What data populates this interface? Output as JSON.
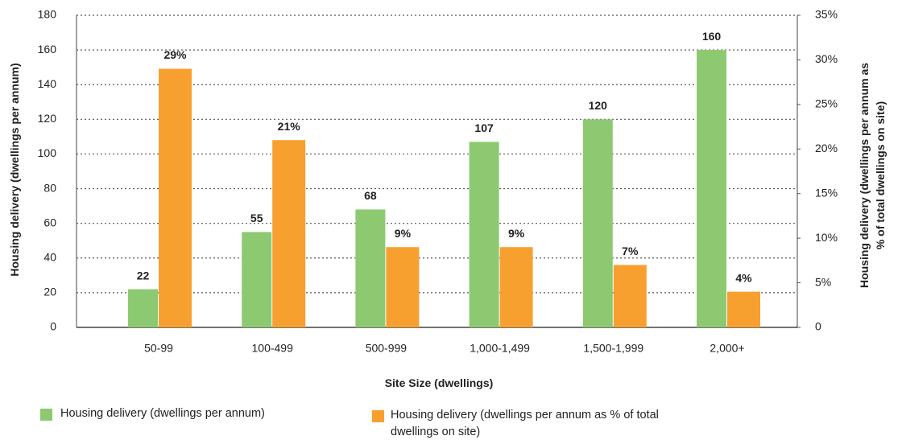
{
  "chart_data": {
    "type": "bar",
    "x_label": "Site Size (dwellings)",
    "y_label": "Housing delivery (dwellings per annum)",
    "y2_label": "Housing delivery (dwellings per annum as % of total dwellings on site)",
    "categories": [
      "50-99",
      "100-499",
      "500-999",
      "1,000-1,499",
      "1,500-1,999",
      "2,000+"
    ],
    "series": [
      {
        "name": "Housing delivery (dwellings per annum)",
        "color": "#8dc971",
        "values": [
          22,
          55,
          68,
          107,
          120,
          160
        ]
      },
      {
        "name": "Housing delivery (dwellings per annum as % of total dwellings on site)",
        "color": "#f7a030",
        "axis": "y2",
        "values": [
          29,
          21,
          9,
          9,
          7,
          4
        ],
        "value_labels": [
          "29%",
          "21%",
          "9%",
          "9%",
          "7%",
          "4%"
        ]
      }
    ],
    "ylim": [
      0,
      180
    ],
    "yticks": [
      0,
      20,
      40,
      60,
      80,
      100,
      120,
      140,
      160,
      180
    ],
    "y2lim": [
      0,
      35
    ],
    "y2ticks": [
      0,
      {
        "value": 5,
        "label": "5%"
      },
      {
        "value": 10,
        "label": "10%"
      },
      {
        "value": 15,
        "label": "15%"
      },
      {
        "value": 20,
        "label": "20%"
      },
      {
        "value": 25,
        "label": "25%"
      },
      {
        "value": 30,
        "label": "30%"
      },
      {
        "value": 35,
        "label": "35%"
      }
    ],
    "grid": true
  }
}
